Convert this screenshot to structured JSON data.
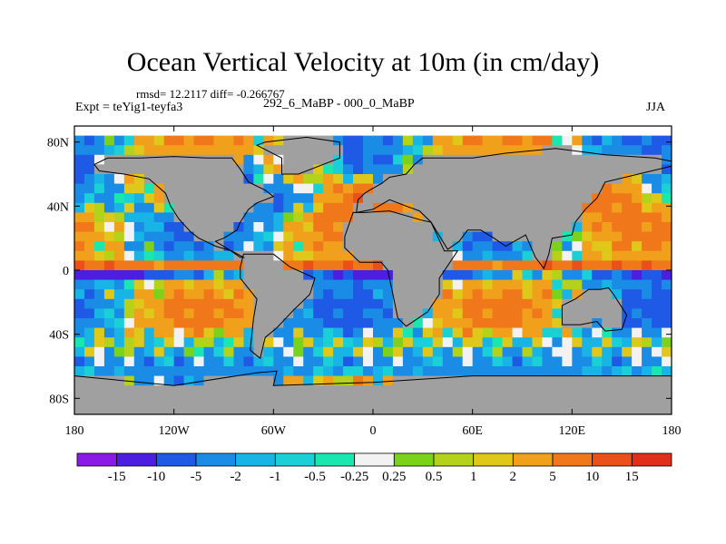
{
  "figure": {
    "title": "Ocean Vertical Velocity at 10m (in cm/day)",
    "stats": "rmsd= 12.2117 diff= -0.266767",
    "experiment": "Expt = teYig1-teyfa3",
    "comparison": "292_6_MaBP - 000_0_MaBP",
    "season": "JJA"
  },
  "colors": {
    "land": "#a0a0a0",
    "missing": "#ffffff"
  },
  "chart_data": {
    "type": "heatmap",
    "title": "Ocean Vertical Velocity at 10m (in cm/day)",
    "units": "cm/day",
    "x_axis": {
      "range": [
        -180,
        180
      ],
      "ticks": [
        -180,
        -120,
        -60,
        0,
        60,
        120,
        180
      ],
      "tick_labels": [
        "180",
        "120W",
        "60W",
        "0",
        "60E",
        "120E",
        "180"
      ]
    },
    "y_axis": {
      "range": [
        -90,
        90
      ],
      "ticks": [
        80,
        40,
        0,
        -40,
        -80
      ],
      "tick_labels": [
        "80N",
        "40N",
        "0",
        "40S",
        "80S"
      ]
    },
    "colorbar": {
      "levels": [
        "-15",
        "-10",
        "-5",
        "-2",
        "-1",
        "-0.5",
        "-0.25",
        "0.25",
        "0.5",
        "1",
        "2",
        "5",
        "10",
        "15"
      ],
      "colors": [
        "#8b1ae6",
        "#4d1ee0",
        "#1f5ae6",
        "#1a8ce6",
        "#19b4e6",
        "#1ad0d6",
        "#1ae6b0",
        "#f2f2f2",
        "#7ad21a",
        "#b4d21a",
        "#e0c81a",
        "#f0a01a",
        "#f0781a",
        "#ec501a",
        "#e0301a"
      ]
    }
  }
}
